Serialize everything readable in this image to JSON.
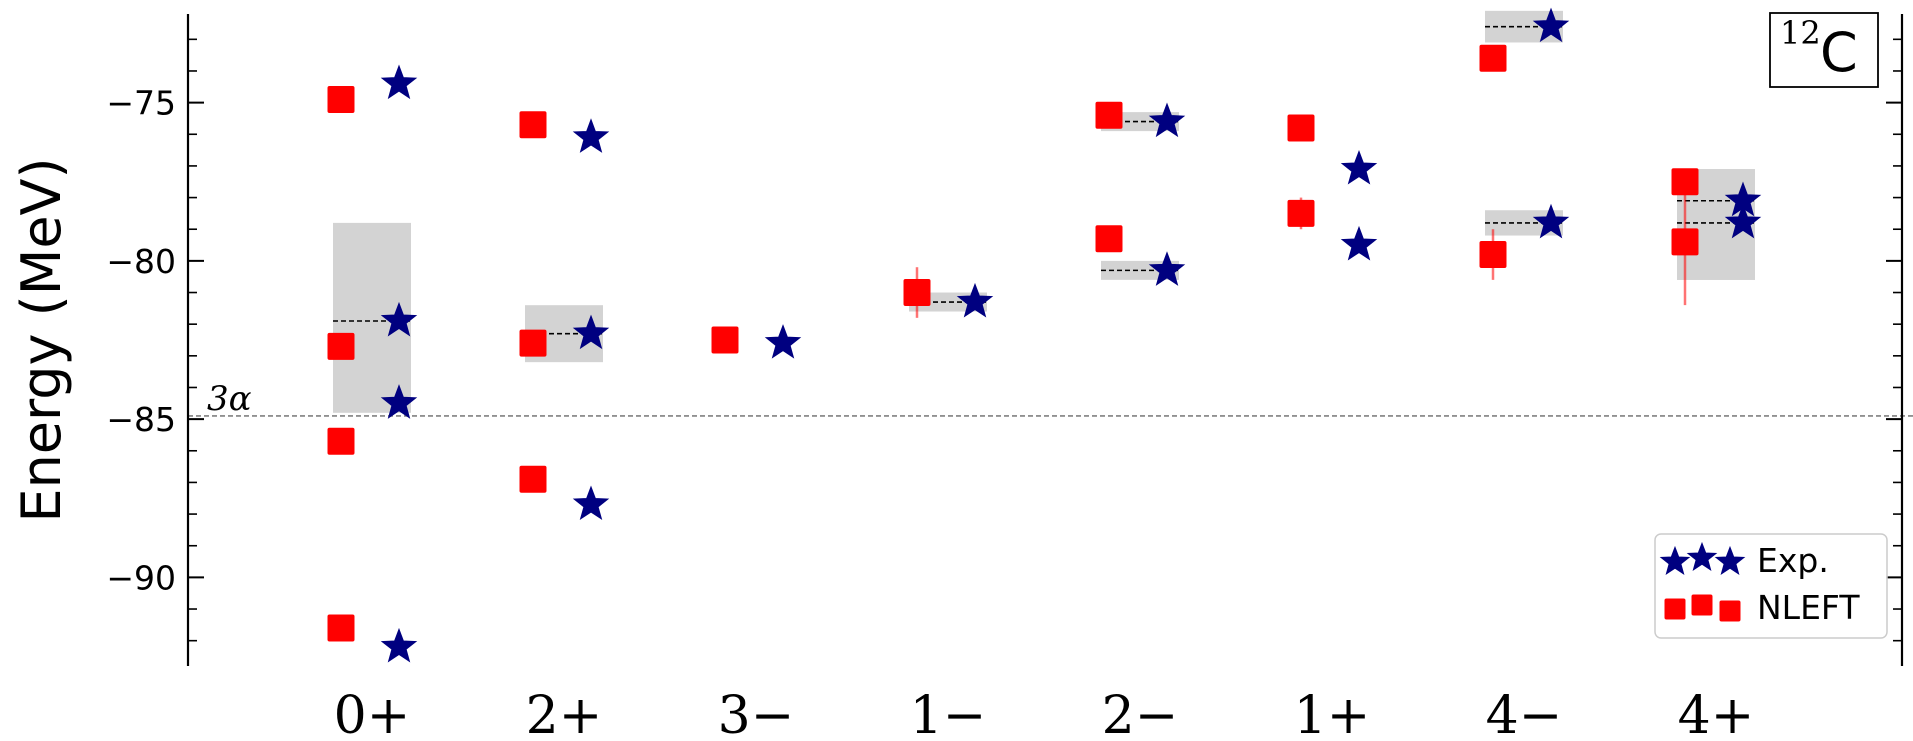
{
  "chart_data": {
    "type": "scatter",
    "ylabel": "Energy (MeV)",
    "ylim": [
      -92.8,
      -72.2
    ],
    "yticks_major": [
      -75,
      -80,
      -85,
      -90
    ],
    "ytick_labels": [
      "−75",
      "−80",
      "−85",
      "−90"
    ],
    "yticks_minor": [
      -73,
      -74,
      -76,
      -77,
      -78,
      -79,
      -81,
      -82,
      -83,
      -84,
      -86,
      -87,
      -88,
      -89,
      -91,
      -92
    ],
    "categories": [
      "0+",
      "2+",
      "3−",
      "1−",
      "2−",
      "1+",
      "4−",
      "4+"
    ],
    "threshold": {
      "value": -84.9,
      "label": "3α"
    },
    "nucleus": {
      "mass": "12",
      "symbol": "C"
    },
    "legend": {
      "position": "lower-right",
      "exp_label": "Exp.",
      "nleft_label": "NLEFT"
    },
    "colors": {
      "exp": "#000080",
      "nleft": "#ff0000",
      "band": "#d3d3d3",
      "threshold": "#808080"
    },
    "series": [
      {
        "name": "Exp.",
        "points": [
          {
            "cat": 0,
            "value": -74.4
          },
          {
            "cat": 0,
            "value": -81.9
          },
          {
            "cat": 0,
            "value": -84.5
          },
          {
            "cat": 0,
            "value": -92.2
          },
          {
            "cat": 1,
            "value": -76.1
          },
          {
            "cat": 1,
            "value": -82.3
          },
          {
            "cat": 1,
            "value": -87.7
          },
          {
            "cat": 2,
            "value": -82.6
          },
          {
            "cat": 3,
            "value": -81.3
          },
          {
            "cat": 4,
            "value": -75.6
          },
          {
            "cat": 4,
            "value": -80.3
          },
          {
            "cat": 5,
            "value": -77.1
          },
          {
            "cat": 5,
            "value": -79.5
          },
          {
            "cat": 6,
            "value": -72.6
          },
          {
            "cat": 6,
            "value": -78.8
          },
          {
            "cat": 7,
            "value": -78.1
          },
          {
            "cat": 7,
            "value": -78.8
          }
        ]
      },
      {
        "name": "NLEFT",
        "points": [
          {
            "cat": 0,
            "value": -74.9
          },
          {
            "cat": 0,
            "value": -82.7
          },
          {
            "cat": 0,
            "value": -85.7
          },
          {
            "cat": 0,
            "value": -91.6
          },
          {
            "cat": 1,
            "value": -75.7
          },
          {
            "cat": 1,
            "value": -82.6
          },
          {
            "cat": 1,
            "value": -86.9
          },
          {
            "cat": 2,
            "value": -82.5
          },
          {
            "cat": 3,
            "value": -81.0,
            "err": 0.8
          },
          {
            "cat": 4,
            "value": -75.4
          },
          {
            "cat": 4,
            "value": -79.3
          },
          {
            "cat": 5,
            "value": -75.8
          },
          {
            "cat": 5,
            "value": -78.5,
            "err": 0.5
          },
          {
            "cat": 6,
            "value": -73.6
          },
          {
            "cat": 6,
            "value": -79.8,
            "err": 0.8
          },
          {
            "cat": 7,
            "value": -77.5
          },
          {
            "cat": 7,
            "value": -79.4,
            "err": 2.0
          }
        ]
      }
    ],
    "widths": [
      {
        "cat": 0,
        "center": -81.9,
        "low": -84.8,
        "high": -78.8
      },
      {
        "cat": 1,
        "center": -82.3,
        "low": -83.2,
        "high": -81.4
      },
      {
        "cat": 3,
        "center": -81.3,
        "low": -81.6,
        "high": -81.0
      },
      {
        "cat": 4,
        "center": -75.6,
        "low": -75.9,
        "high": -75.3
      },
      {
        "cat": 4,
        "center": -80.3,
        "low": -80.6,
        "high": -80.0
      },
      {
        "cat": 6,
        "center": -72.6,
        "low": -73.1,
        "high": -72.1
      },
      {
        "cat": 6,
        "center": -78.8,
        "low": -79.2,
        "high": -78.4
      },
      {
        "cat": 7,
        "center": -78.1,
        "low": -80.6,
        "high": -77.1
      },
      {
        "cat": 7,
        "center": -78.8,
        "low": -80.6,
        "high": -77.1
      }
    ]
  }
}
